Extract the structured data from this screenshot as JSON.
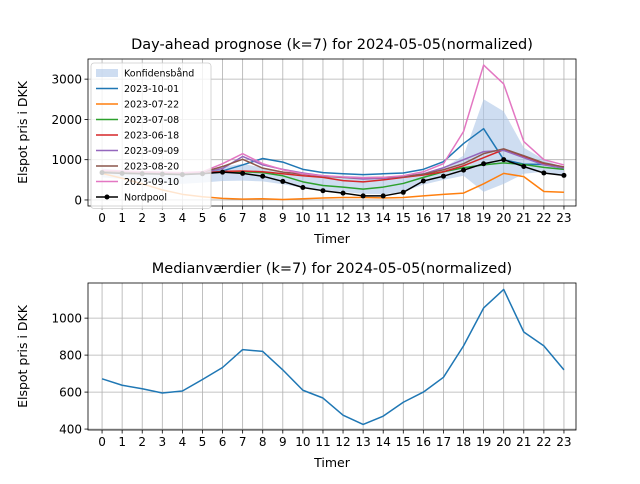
{
  "chart_data": [
    {
      "type": "line",
      "title": "Day-ahead prognose (k=7) for 2024-05-05(normalized)",
      "xlabel": "Timer",
      "ylabel": "Elspot pris i DKK",
      "categories": [
        0,
        1,
        2,
        3,
        4,
        5,
        6,
        7,
        8,
        9,
        10,
        11,
        12,
        13,
        14,
        15,
        16,
        17,
        18,
        19,
        20,
        21,
        22,
        23
      ],
      "xlim": [
        -0.7,
        23.6
      ],
      "ylim": [
        -150,
        3500
      ],
      "yticks": [
        0,
        1000,
        2000,
        3000
      ],
      "grid": true,
      "legend": "top-left",
      "band": {
        "name": "Konfidensbånd",
        "color": "#aec7e8",
        "lower": [
          560,
          520,
          480,
          420,
          400,
          430,
          470,
          480,
          460,
          390,
          300,
          250,
          200,
          150,
          140,
          200,
          380,
          500,
          600,
          200,
          400,
          650,
          700,
          600
        ],
        "upper": [
          780,
          740,
          720,
          690,
          680,
          700,
          820,
          900,
          800,
          700,
          650,
          620,
          600,
          580,
          580,
          600,
          650,
          800,
          1100,
          2500,
          2200,
          1300,
          1000,
          800
        ]
      },
      "series": [
        {
          "name": "2023-10-01",
          "color": "#1f77b4",
          "values": [
            700,
            690,
            680,
            670,
            660,
            680,
            720,
            870,
            1030,
            940,
            760,
            680,
            650,
            630,
            650,
            670,
            760,
            950,
            1400,
            1770,
            1000,
            890,
            880,
            790
          ]
        },
        {
          "name": "2023-07-22",
          "color": "#ff7f0e",
          "values": [
            660,
            540,
            400,
            250,
            140,
            80,
            40,
            20,
            30,
            10,
            30,
            50,
            60,
            60,
            50,
            60,
            100,
            140,
            170,
            400,
            660,
            580,
            210,
            190
          ]
        },
        {
          "name": "2023-07-08",
          "color": "#2ca02c",
          "values": [
            690,
            680,
            670,
            660,
            650,
            660,
            690,
            700,
            680,
            600,
            450,
            360,
            320,
            270,
            320,
            410,
            560,
            700,
            800,
            870,
            920,
            880,
            810,
            760
          ]
        },
        {
          "name": "2023-06-18",
          "color": "#d62728",
          "values": [
            710,
            690,
            680,
            670,
            660,
            670,
            710,
            720,
            700,
            650,
            600,
            560,
            480,
            450,
            500,
            560,
            620,
            700,
            850,
            1050,
            1250,
            1080,
            900,
            820
          ]
        },
        {
          "name": "2023-09-09",
          "color": "#9467bd",
          "values": [
            700,
            690,
            680,
            670,
            660,
            680,
            780,
            1080,
            870,
            760,
            670,
            600,
            560,
            520,
            540,
            580,
            650,
            800,
            1000,
            1200,
            1230,
            1050,
            870,
            790
          ]
        },
        {
          "name": "2023-08-20",
          "color": "#8c564b",
          "values": [
            720,
            700,
            690,
            680,
            670,
            690,
            830,
            1010,
            790,
            690,
            640,
            590,
            560,
            550,
            560,
            580,
            640,
            750,
            900,
            1150,
            1270,
            1100,
            920,
            820
          ]
        },
        {
          "name": "2023-09-10",
          "color": "#e377c2",
          "values": [
            740,
            720,
            700,
            690,
            680,
            700,
            900,
            1150,
            900,
            750,
            650,
            600,
            570,
            550,
            560,
            600,
            700,
            900,
            1700,
            3350,
            2880,
            1450,
            1000,
            870
          ]
        },
        {
          "name": "Nordpool",
          "color": "#000000",
          "marker": true,
          "values": [
            680,
            660,
            650,
            640,
            630,
            650,
            690,
            660,
            590,
            460,
            310,
            230,
            170,
            100,
            100,
            190,
            470,
            590,
            740,
            900,
            1000,
            830,
            670,
            610
          ]
        }
      ]
    },
    {
      "type": "line",
      "title": "Medianværdier (k=7) for 2024-05-05(normalized)",
      "xlabel": "Timer",
      "ylabel": "Elspot pris i DKK",
      "categories": [
        0,
        1,
        2,
        3,
        4,
        5,
        6,
        7,
        8,
        9,
        10,
        11,
        12,
        13,
        14,
        15,
        16,
        17,
        18,
        19,
        20,
        21,
        22,
        23
      ],
      "xlim": [
        -0.7,
        23.6
      ],
      "ylim": [
        395,
        1190
      ],
      "yticks": [
        400,
        600,
        800,
        1000
      ],
      "grid": true,
      "series": [
        {
          "color": "#1f77b4",
          "values": [
            672,
            637,
            618,
            595,
            606,
            668,
            733,
            830,
            820,
            720,
            610,
            568,
            475,
            425,
            470,
            545,
            600,
            680,
            850,
            1055,
            1155,
            925,
            850,
            720
          ]
        }
      ]
    }
  ]
}
